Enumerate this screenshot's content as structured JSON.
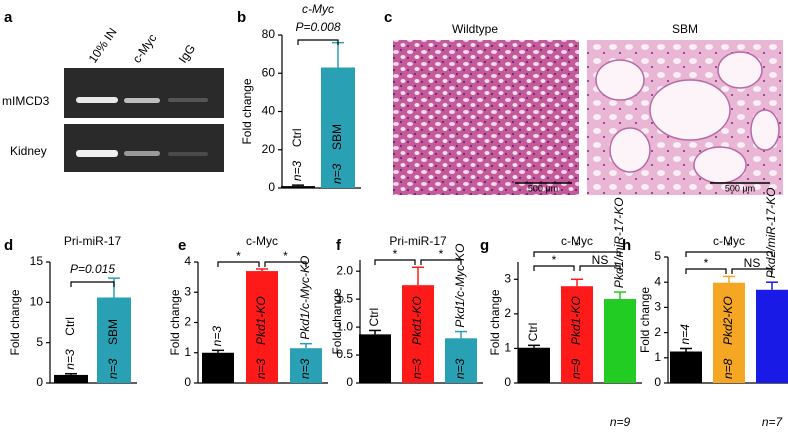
{
  "panel_a": {
    "panel": "a",
    "lanes": [
      "10% IN",
      "c-Myc",
      "IgG"
    ],
    "rows": [
      "mIMCD3",
      "Kidney"
    ]
  },
  "panel_c": {
    "panel": "c",
    "images": [
      {
        "label": "Wildtype",
        "scale_bar": "500 μm"
      },
      {
        "label": "SBM",
        "scale_bar": "500 μm"
      }
    ]
  },
  "chart_data": [
    {
      "panel": "b",
      "type": "bar",
      "title": "c-Myc",
      "ylabel": "Fold change",
      "categories": [
        "Ctrl",
        "SBM"
      ],
      "values": [
        1,
        63
      ],
      "errors": [
        0.5,
        13
      ],
      "colors": [
        "#000000",
        "#2aa0b4"
      ],
      "n_labels": [
        "n=3",
        "n=3"
      ],
      "ylim": [
        0,
        80
      ],
      "yticks": [
        0,
        20,
        40,
        60,
        80
      ],
      "comparisons": [
        {
          "pair": [
            "Ctrl",
            "SBM"
          ],
          "label": "P=0.008"
        }
      ]
    },
    {
      "panel": "d",
      "type": "bar",
      "title": "Pri-miR-17",
      "ylabel": "Fold change",
      "categories": [
        "Ctrl",
        "SBM"
      ],
      "values": [
        1,
        10.6
      ],
      "errors": [
        0.15,
        2.4
      ],
      "colors": [
        "#000000",
        "#2aa0b4"
      ],
      "n_labels": [
        "n=3",
        "n=3"
      ],
      "ylim": [
        0,
        15
      ],
      "yticks": [
        0,
        5,
        10,
        15
      ],
      "comparisons": [
        {
          "pair": [
            "Ctrl",
            "SBM"
          ],
          "label": "P=0.015"
        }
      ]
    },
    {
      "panel": "e",
      "type": "bar",
      "title": "c-Myc",
      "ylabel": "Fold change",
      "categories": [
        "Ctrl",
        "Pkd1-KO",
        "Pkd1/c-Myc-KO"
      ],
      "values": [
        1.0,
        3.7,
        1.15
      ],
      "errors": [
        0.08,
        0.07,
        0.15
      ],
      "colors": [
        "#000000",
        "#ff1a1a",
        "#2aa0b4"
      ],
      "n_labels": [
        "n=3",
        "n=3",
        "n=3"
      ],
      "ylim": [
        0,
        4
      ],
      "yticks": [
        0,
        1,
        2,
        3,
        4
      ],
      "comparisons": [
        {
          "pair": [
            "Ctrl",
            "Pkd1-KO"
          ],
          "label": "*"
        },
        {
          "pair": [
            "Pkd1-KO",
            "Pkd1/c-Myc-KO"
          ],
          "label": "*"
        }
      ]
    },
    {
      "panel": "f",
      "type": "bar",
      "title": "Pri-miR-17",
      "ylabel": "Fold change",
      "categories": [
        "Ctrl",
        "Pkd1-KO",
        "Pkd1/c-Myc-KO"
      ],
      "values": [
        0.87,
        1.75,
        0.8
      ],
      "errors": [
        0.07,
        0.32,
        0.12
      ],
      "colors": [
        "#000000",
        "#ff1a1a",
        "#2aa0b4"
      ],
      "n_labels": [
        "n=3",
        "n=3",
        "n=3"
      ],
      "ylim": [
        0,
        2.2
      ],
      "yticks": [
        0,
        0.5,
        {
          "value": 1,
          "label": "1.0"
        },
        1.5,
        {
          "value": 2,
          "label": "2.0"
        }
      ],
      "comparisons": [
        {
          "pair": [
            "Ctrl",
            "Pkd1-KO"
          ],
          "label": "*"
        },
        {
          "pair": [
            "Pkd1-KO",
            "Pkd1/c-Myc-KO"
          ],
          "label": "*"
        }
      ]
    },
    {
      "panel": "g",
      "type": "bar",
      "title": "c-Myc",
      "ylabel": "Fold change",
      "categories": [
        "Ctrl",
        "Pkd1-KO",
        "Pkd1/miR-17-KO"
      ],
      "values": [
        1.02,
        2.8,
        2.43
      ],
      "errors": [
        0.07,
        0.2,
        0.2
      ],
      "colors": [
        "#000000",
        "#ff1a1a",
        "#22cc22"
      ],
      "n_labels": [
        "n=5",
        "n=9",
        null
      ],
      "footnote": "n=9",
      "ylim": [
        0,
        3.5
      ],
      "yticks": [
        0,
        1,
        2,
        3
      ],
      "comparisons": [
        {
          "pair": [
            "Ctrl",
            "Pkd1-KO"
          ],
          "label": "*"
        },
        {
          "pair": [
            "Pkd1-KO",
            "Pkd1/miR-17-KO"
          ],
          "label": "NS"
        },
        {
          "pair": [
            "Ctrl",
            "Pkd1/miR-17-KO"
          ],
          "label": "*"
        }
      ]
    },
    {
      "panel": "h",
      "type": "bar",
      "title": "c-Myc",
      "ylabel": "Fold change",
      "categories": [
        "Ctrl",
        "Pkd2-KO",
        "Pkd2/miR-17-KO"
      ],
      "values": [
        1.25,
        3.98,
        3.7
      ],
      "errors": [
        0.12,
        0.25,
        0.3
      ],
      "colors": [
        "#000000",
        "#f5a623",
        "#1a1ae6"
      ],
      "n_labels": [
        "n=4",
        "n=8",
        null
      ],
      "footnote": "n=7",
      "ylim": [
        0,
        5
      ],
      "yticks": [
        0,
        1,
        2,
        3,
        4,
        5
      ],
      "comparisons": [
        {
          "pair": [
            "Ctrl",
            "Pkd2-KO"
          ],
          "label": "*"
        },
        {
          "pair": [
            "Pkd2-KO",
            "Pkd2/miR-17-KO"
          ],
          "label": "NS"
        },
        {
          "pair": [
            "Ctrl",
            "Pkd2/miR-17-KO"
          ],
          "label": "*"
        }
      ]
    }
  ]
}
